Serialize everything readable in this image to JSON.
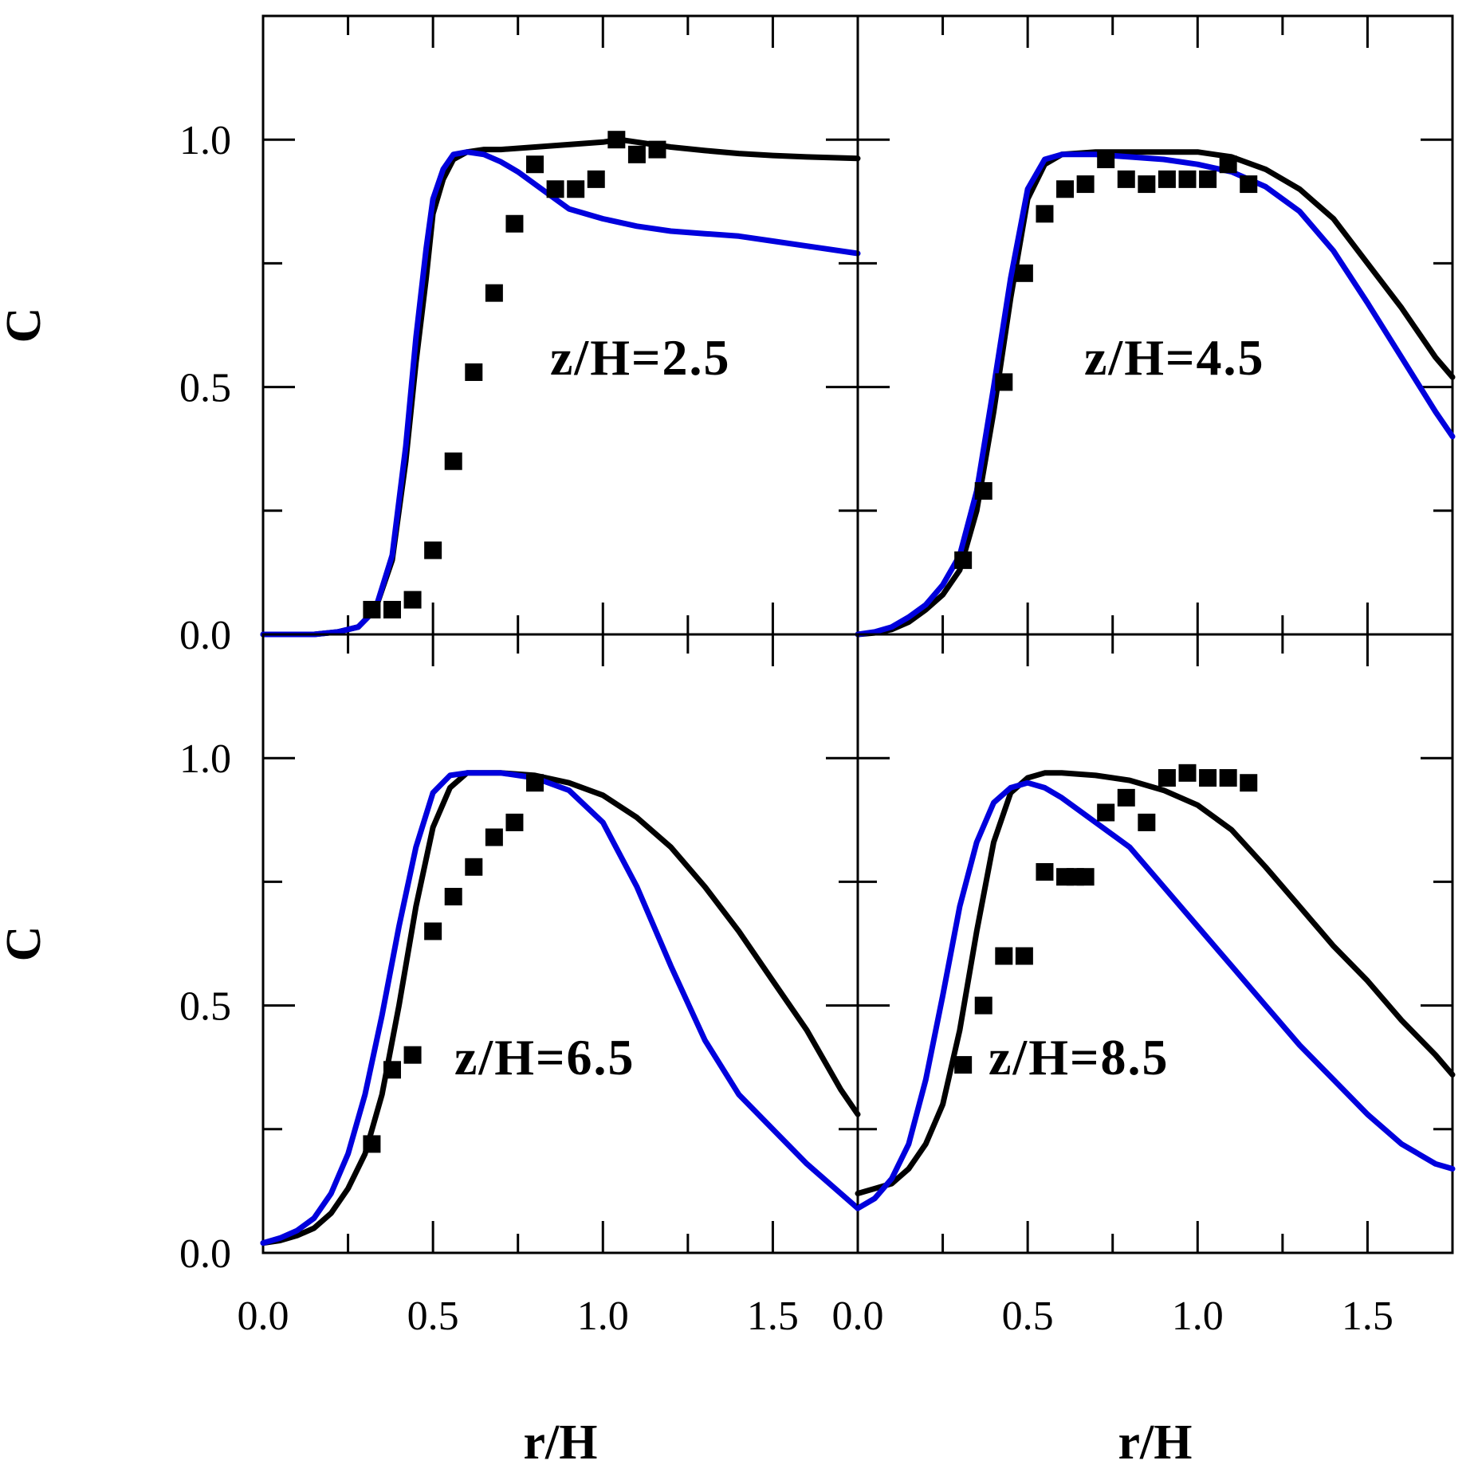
{
  "chart_data": [
    {
      "type": "line",
      "annotation": "z/H=2.5",
      "xlim": [
        0,
        1.75
      ],
      "ylim": [
        0,
        1.25
      ],
      "x_ticks": [
        "0.0",
        "0.5",
        "1.0",
        "1.5"
      ],
      "y_ticks": [
        "0.0",
        "0.5",
        "1.0"
      ],
      "ylabel": "C",
      "xlabel": "",
      "series": [
        {
          "style": "line",
          "color": "#000000",
          "x": [
            0,
            0.15,
            0.22,
            0.28,
            0.33,
            0.38,
            0.42,
            0.45,
            0.48,
            0.5,
            0.53,
            0.56,
            0.6,
            0.65,
            0.7,
            0.8,
            0.9,
            1.0,
            1.05,
            1.1,
            1.2,
            1.3,
            1.4,
            1.5,
            1.6,
            1.75
          ],
          "y": [
            0,
            0,
            0.005,
            0.015,
            0.05,
            0.15,
            0.35,
            0.55,
            0.72,
            0.85,
            0.92,
            0.96,
            0.975,
            0.98,
            0.98,
            0.985,
            0.99,
            0.995,
            1.0,
            0.995,
            0.985,
            0.978,
            0.972,
            0.968,
            0.965,
            0.962
          ]
        },
        {
          "style": "line",
          "color": "#0000dd",
          "x": [
            0,
            0.15,
            0.22,
            0.28,
            0.33,
            0.38,
            0.42,
            0.45,
            0.48,
            0.5,
            0.53,
            0.56,
            0.6,
            0.65,
            0.7,
            0.75,
            0.8,
            0.9,
            1.0,
            1.1,
            1.2,
            1.3,
            1.4,
            1.5,
            1.6,
            1.75
          ],
          "y": [
            0,
            0,
            0.005,
            0.015,
            0.05,
            0.16,
            0.38,
            0.6,
            0.78,
            0.88,
            0.94,
            0.97,
            0.975,
            0.97,
            0.955,
            0.935,
            0.91,
            0.86,
            0.84,
            0.825,
            0.815,
            0.81,
            0.805,
            0.795,
            0.785,
            0.77
          ]
        },
        {
          "style": "markers",
          "color": "#000000",
          "x": [
            0.32,
            0.38,
            0.44,
            0.5,
            0.56,
            0.62,
            0.68,
            0.74,
            0.8,
            0.86,
            0.92,
            0.98,
            1.04,
            1.1,
            1.16
          ],
          "y": [
            0.05,
            0.05,
            0.07,
            0.17,
            0.35,
            0.53,
            0.69,
            0.83,
            0.95,
            0.9,
            0.9,
            0.92,
            1.0,
            0.97,
            0.98
          ]
        }
      ]
    },
    {
      "type": "line",
      "annotation": "z/H=4.5",
      "xlim": [
        0,
        1.75
      ],
      "ylim": [
        0,
        1.25
      ],
      "x_ticks": [
        "0.0",
        "0.5",
        "1.0",
        "1.5"
      ],
      "y_ticks": [],
      "ylabel": "",
      "xlabel": "",
      "series": [
        {
          "style": "line",
          "color": "#000000",
          "x": [
            0,
            0.05,
            0.1,
            0.15,
            0.2,
            0.25,
            0.3,
            0.35,
            0.4,
            0.45,
            0.5,
            0.55,
            0.6,
            0.7,
            0.8,
            0.9,
            1.0,
            1.1,
            1.2,
            1.3,
            1.4,
            1.5,
            1.6,
            1.7,
            1.75
          ],
          "y": [
            0,
            0.003,
            0.01,
            0.025,
            0.05,
            0.08,
            0.13,
            0.25,
            0.45,
            0.68,
            0.88,
            0.95,
            0.97,
            0.975,
            0.975,
            0.975,
            0.975,
            0.965,
            0.94,
            0.9,
            0.84,
            0.75,
            0.66,
            0.56,
            0.52
          ]
        },
        {
          "style": "line",
          "color": "#0000dd",
          "x": [
            0,
            0.05,
            0.1,
            0.15,
            0.2,
            0.25,
            0.3,
            0.35,
            0.4,
            0.45,
            0.5,
            0.55,
            0.6,
            0.7,
            0.8,
            0.9,
            1.0,
            1.1,
            1.2,
            1.3,
            1.4,
            1.5,
            1.6,
            1.7,
            1.75
          ],
          "y": [
            0,
            0.005,
            0.015,
            0.035,
            0.06,
            0.1,
            0.16,
            0.29,
            0.5,
            0.72,
            0.9,
            0.96,
            0.97,
            0.97,
            0.965,
            0.96,
            0.95,
            0.935,
            0.905,
            0.855,
            0.775,
            0.67,
            0.56,
            0.45,
            0.4
          ]
        },
        {
          "style": "markers",
          "color": "#000000",
          "x": [
            0.31,
            0.37,
            0.43,
            0.49,
            0.55,
            0.61,
            0.67,
            0.73,
            0.79,
            0.85,
            0.91,
            0.97,
            1.03,
            1.09,
            1.15
          ],
          "y": [
            0.15,
            0.29,
            0.51,
            0.73,
            0.85,
            0.9,
            0.91,
            0.96,
            0.92,
            0.91,
            0.92,
            0.92,
            0.92,
            0.95,
            0.91
          ]
        }
      ]
    },
    {
      "type": "line",
      "annotation": "z/H=6.5",
      "xlim": [
        0,
        1.75
      ],
      "ylim": [
        0,
        1.25
      ],
      "x_ticks": [
        "0.0",
        "0.5",
        "1.0",
        "1.5"
      ],
      "y_ticks": [
        "0.0",
        "0.5",
        "1.0"
      ],
      "ylabel": "C",
      "xlabel": "r/H",
      "series": [
        {
          "style": "line",
          "color": "#000000",
          "x": [
            0,
            0.05,
            0.1,
            0.15,
            0.2,
            0.25,
            0.3,
            0.35,
            0.4,
            0.45,
            0.5,
            0.55,
            0.6,
            0.7,
            0.8,
            0.9,
            1.0,
            1.1,
            1.2,
            1.3,
            1.4,
            1.5,
            1.6,
            1.7,
            1.75
          ],
          "y": [
            0.02,
            0.025,
            0.035,
            0.05,
            0.08,
            0.13,
            0.2,
            0.32,
            0.5,
            0.7,
            0.86,
            0.94,
            0.97,
            0.97,
            0.965,
            0.95,
            0.925,
            0.88,
            0.82,
            0.74,
            0.65,
            0.55,
            0.45,
            0.33,
            0.28
          ]
        },
        {
          "style": "line",
          "color": "#0000dd",
          "x": [
            0,
            0.05,
            0.1,
            0.15,
            0.2,
            0.25,
            0.3,
            0.35,
            0.4,
            0.45,
            0.5,
            0.55,
            0.6,
            0.7,
            0.8,
            0.9,
            1.0,
            1.1,
            1.2,
            1.3,
            1.4,
            1.5,
            1.6,
            1.7,
            1.75
          ],
          "y": [
            0.02,
            0.03,
            0.045,
            0.07,
            0.12,
            0.2,
            0.32,
            0.48,
            0.66,
            0.82,
            0.93,
            0.965,
            0.97,
            0.97,
            0.96,
            0.935,
            0.87,
            0.74,
            0.58,
            0.43,
            0.32,
            0.25,
            0.18,
            0.12,
            0.09
          ]
        },
        {
          "style": "markers",
          "color": "#000000",
          "x": [
            0.32,
            0.38,
            0.44,
            0.5,
            0.56,
            0.62,
            0.68,
            0.74,
            0.8
          ],
          "y": [
            0.22,
            0.37,
            0.4,
            0.65,
            0.72,
            0.78,
            0.84,
            0.87,
            0.95
          ]
        }
      ]
    },
    {
      "type": "line",
      "annotation": "z/H=8.5",
      "xlim": [
        0,
        1.75
      ],
      "ylim": [
        0,
        1.25
      ],
      "x_ticks": [
        "0.0",
        "0.5",
        "1.0",
        "1.5"
      ],
      "y_ticks": [],
      "ylabel": "",
      "xlabel": "r/H",
      "series": [
        {
          "style": "line",
          "color": "#000000",
          "x": [
            0,
            0.05,
            0.1,
            0.15,
            0.2,
            0.25,
            0.3,
            0.35,
            0.4,
            0.45,
            0.5,
            0.55,
            0.6,
            0.7,
            0.8,
            0.9,
            1.0,
            1.1,
            1.2,
            1.3,
            1.4,
            1.5,
            1.6,
            1.7,
            1.75
          ],
          "y": [
            0.12,
            0.13,
            0.14,
            0.17,
            0.22,
            0.3,
            0.45,
            0.65,
            0.83,
            0.93,
            0.96,
            0.97,
            0.97,
            0.965,
            0.955,
            0.935,
            0.905,
            0.855,
            0.78,
            0.7,
            0.62,
            0.55,
            0.47,
            0.4,
            0.36
          ]
        },
        {
          "style": "line",
          "color": "#0000dd",
          "x": [
            0,
            0.05,
            0.1,
            0.15,
            0.2,
            0.25,
            0.3,
            0.35,
            0.4,
            0.45,
            0.5,
            0.55,
            0.6,
            0.7,
            0.8,
            0.9,
            1.0,
            1.1,
            1.2,
            1.3,
            1.4,
            1.5,
            1.6,
            1.7,
            1.75
          ],
          "y": [
            0.09,
            0.11,
            0.15,
            0.22,
            0.35,
            0.52,
            0.7,
            0.83,
            0.91,
            0.94,
            0.95,
            0.94,
            0.92,
            0.87,
            0.82,
            0.74,
            0.66,
            0.58,
            0.5,
            0.42,
            0.35,
            0.28,
            0.22,
            0.18,
            0.17
          ]
        },
        {
          "style": "markers",
          "color": "#000000",
          "x": [
            0.31,
            0.37,
            0.43,
            0.49,
            0.55,
            0.61,
            0.64,
            0.67,
            0.73,
            0.79,
            0.85,
            0.91,
            0.97,
            1.03,
            1.09,
            1.15
          ],
          "y": [
            0.38,
            0.5,
            0.6,
            0.6,
            0.77,
            0.76,
            0.76,
            0.76,
            0.89,
            0.92,
            0.87,
            0.96,
            0.97,
            0.96,
            0.96,
            0.95
          ]
        }
      ]
    }
  ]
}
